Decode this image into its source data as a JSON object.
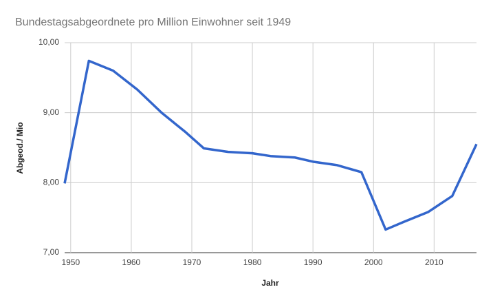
{
  "chart_data": {
    "type": "line",
    "title": "Bundestagsabgeordnete pro Million Einwohner seit 1949",
    "x_label": "Jahr",
    "y_label": "Abgeod./ Mio",
    "x": [
      1949,
      1953,
      1957,
      1961,
      1965,
      1969,
      1972,
      1976,
      1980,
      1983,
      1987,
      1990,
      1994,
      1998,
      2002,
      2005,
      2009,
      2013,
      2017
    ],
    "series": [
      {
        "name": "Abgeod./ Mio",
        "color": "#3366cc",
        "values": [
          7.99,
          9.74,
          9.6,
          9.33,
          9.0,
          8.72,
          8.49,
          8.44,
          8.42,
          8.38,
          8.36,
          8.3,
          8.25,
          8.15,
          7.33,
          7.44,
          7.58,
          7.81,
          8.55
        ]
      }
    ],
    "xlim": [
      1949,
      2017
    ],
    "xticks": [
      1950,
      1960,
      1970,
      1980,
      1990,
      2000,
      2010
    ],
    "ylim": [
      7,
      10
    ],
    "yticks": [
      {
        "value": 7,
        "label": "7,00"
      },
      {
        "value": 8,
        "label": "8,00"
      },
      {
        "value": 9,
        "label": "9,00"
      },
      {
        "value": 10,
        "label": "10,00"
      }
    ],
    "grid": true
  }
}
